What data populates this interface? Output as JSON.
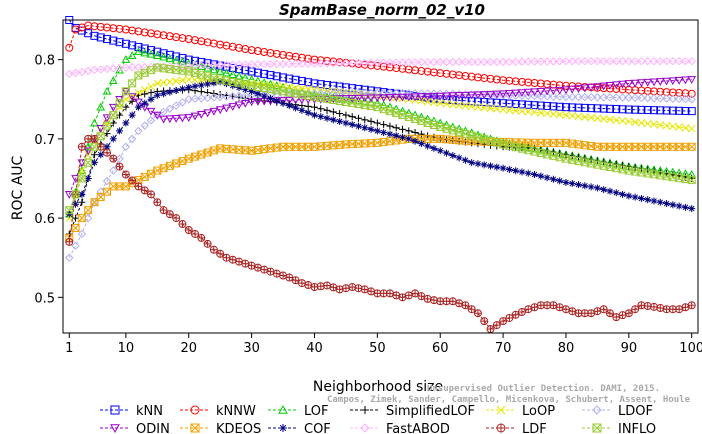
{
  "chart_data": {
    "type": "line",
    "title": "SpamBase_norm_02_v10",
    "xlabel": "Neighborhood size",
    "ylabel": "ROC AUC",
    "xlim": [
      0,
      101
    ],
    "ylim": [
      0.455,
      0.85
    ],
    "x_ticks": [
      1,
      10,
      20,
      30,
      40,
      50,
      60,
      70,
      80,
      90,
      100
    ],
    "y_ticks": [
      0.5,
      0.6,
      0.7,
      0.8
    ],
    "grid": false,
    "legend_position": "bottom",
    "series": [
      {
        "name": "kNN",
        "color": "#0000ff",
        "marker": "square",
        "points": [
          [
            1,
            0.85
          ],
          [
            2,
            0.84
          ],
          [
            5,
            0.83
          ],
          [
            10,
            0.82
          ],
          [
            15,
            0.81
          ],
          [
            20,
            0.8
          ],
          [
            30,
            0.785
          ],
          [
            40,
            0.77
          ],
          [
            50,
            0.76
          ],
          [
            60,
            0.75
          ],
          [
            70,
            0.745
          ],
          [
            80,
            0.74
          ],
          [
            90,
            0.737
          ],
          [
            100,
            0.735
          ]
        ]
      },
      {
        "name": "kNNW",
        "color": "#ff0000",
        "marker": "circle",
        "points": [
          [
            1,
            0.815
          ],
          [
            2,
            0.838
          ],
          [
            4,
            0.843
          ],
          [
            10,
            0.838
          ],
          [
            20,
            0.826
          ],
          [
            30,
            0.812
          ],
          [
            40,
            0.8
          ],
          [
            50,
            0.792
          ],
          [
            60,
            0.783
          ],
          [
            70,
            0.774
          ],
          [
            80,
            0.767
          ],
          [
            90,
            0.762
          ],
          [
            100,
            0.757
          ]
        ]
      },
      {
        "name": "LOF",
        "color": "#00cc00",
        "marker": "triangle",
        "points": [
          [
            1,
            0.605
          ],
          [
            3,
            0.66
          ],
          [
            5,
            0.72
          ],
          [
            7,
            0.76
          ],
          [
            10,
            0.8
          ],
          [
            12,
            0.81
          ],
          [
            15,
            0.805
          ],
          [
            20,
            0.795
          ],
          [
            25,
            0.785
          ],
          [
            30,
            0.775
          ],
          [
            35,
            0.765
          ],
          [
            40,
            0.755
          ],
          [
            50,
            0.745
          ],
          [
            60,
            0.72
          ],
          [
            70,
            0.695
          ],
          [
            80,
            0.68
          ],
          [
            90,
            0.665
          ],
          [
            100,
            0.655
          ]
        ]
      },
      {
        "name": "SimplifiedLOF",
        "color": "#000000",
        "marker": "plus",
        "points": [
          [
            1,
            0.58
          ],
          [
            3,
            0.62
          ],
          [
            5,
            0.68
          ],
          [
            8,
            0.72
          ],
          [
            10,
            0.74
          ],
          [
            12,
            0.755
          ],
          [
            15,
            0.76
          ],
          [
            20,
            0.762
          ],
          [
            25,
            0.756
          ],
          [
            30,
            0.75
          ],
          [
            35,
            0.745
          ],
          [
            40,
            0.74
          ],
          [
            45,
            0.73
          ],
          [
            50,
            0.72
          ],
          [
            55,
            0.71
          ],
          [
            60,
            0.7
          ],
          [
            65,
            0.695
          ],
          [
            70,
            0.69
          ],
          [
            75,
            0.688
          ],
          [
            80,
            0.68
          ],
          [
            85,
            0.672
          ],
          [
            90,
            0.665
          ],
          [
            95,
            0.658
          ],
          [
            100,
            0.65
          ]
        ]
      },
      {
        "name": "LoOP",
        "color": "#e6e600",
        "marker": "cross",
        "points": [
          [
            1,
            0.6
          ],
          [
            3,
            0.66
          ],
          [
            5,
            0.7
          ],
          [
            10,
            0.75
          ],
          [
            15,
            0.77
          ],
          [
            20,
            0.775
          ],
          [
            30,
            0.77
          ],
          [
            40,
            0.762
          ],
          [
            50,
            0.755
          ],
          [
            60,
            0.745
          ],
          [
            70,
            0.737
          ],
          [
            80,
            0.73
          ],
          [
            90,
            0.722
          ],
          [
            100,
            0.713
          ]
        ]
      },
      {
        "name": "LDOF",
        "color": "#b0b0f0",
        "marker": "diamond",
        "points": [
          [
            1,
            0.55
          ],
          [
            3,
            0.58
          ],
          [
            5,
            0.62
          ],
          [
            8,
            0.66
          ],
          [
            10,
            0.69
          ],
          [
            12,
            0.71
          ],
          [
            15,
            0.73
          ],
          [
            20,
            0.75
          ],
          [
            25,
            0.753
          ],
          [
            30,
            0.755
          ],
          [
            40,
            0.757
          ],
          [
            50,
            0.758
          ],
          [
            60,
            0.757
          ],
          [
            70,
            0.755
          ],
          [
            80,
            0.753
          ],
          [
            90,
            0.752
          ],
          [
            100,
            0.75
          ]
        ]
      },
      {
        "name": "ODIN",
        "color": "#9900cc",
        "marker": "triangle-down",
        "points": [
          [
            1,
            0.63
          ],
          [
            3,
            0.67
          ],
          [
            5,
            0.7
          ],
          [
            8,
            0.74
          ],
          [
            10,
            0.76
          ],
          [
            13,
            0.74
          ],
          [
            16,
            0.725
          ],
          [
            20,
            0.727
          ],
          [
            25,
            0.737
          ],
          [
            30,
            0.747
          ],
          [
            40,
            0.75
          ],
          [
            50,
            0.752
          ],
          [
            60,
            0.754
          ],
          [
            70,
            0.757
          ],
          [
            80,
            0.762
          ],
          [
            90,
            0.77
          ],
          [
            100,
            0.775
          ]
        ]
      },
      {
        "name": "KDEOS",
        "color": "#f0a000",
        "marker": "square-x",
        "points": [
          [
            1,
            0.575
          ],
          [
            3,
            0.6
          ],
          [
            5,
            0.62
          ],
          [
            8,
            0.64
          ],
          [
            10,
            0.64
          ],
          [
            15,
            0.66
          ],
          [
            20,
            0.675
          ],
          [
            25,
            0.688
          ],
          [
            30,
            0.685
          ],
          [
            35,
            0.69
          ],
          [
            40,
            0.69
          ],
          [
            45,
            0.693
          ],
          [
            50,
            0.695
          ],
          [
            55,
            0.7
          ],
          [
            60,
            0.7
          ],
          [
            65,
            0.697
          ],
          [
            70,
            0.696
          ],
          [
            75,
            0.695
          ],
          [
            80,
            0.695
          ],
          [
            85,
            0.69
          ],
          [
            90,
            0.69
          ],
          [
            95,
            0.69
          ],
          [
            100,
            0.69
          ]
        ]
      },
      {
        "name": "COF",
        "color": "#000080",
        "marker": "star",
        "points": [
          [
            1,
            0.605
          ],
          [
            3,
            0.63
          ],
          [
            5,
            0.67
          ],
          [
            8,
            0.7
          ],
          [
            10,
            0.72
          ],
          [
            12,
            0.74
          ],
          [
            15,
            0.755
          ],
          [
            20,
            0.765
          ],
          [
            25,
            0.772
          ],
          [
            30,
            0.76
          ],
          [
            35,
            0.745
          ],
          [
            40,
            0.73
          ],
          [
            45,
            0.72
          ],
          [
            50,
            0.71
          ],
          [
            55,
            0.7
          ],
          [
            60,
            0.685
          ],
          [
            65,
            0.67
          ],
          [
            70,
            0.663
          ],
          [
            75,
            0.655
          ],
          [
            80,
            0.645
          ],
          [
            85,
            0.638
          ],
          [
            90,
            0.628
          ],
          [
            95,
            0.62
          ],
          [
            100,
            0.612
          ]
        ]
      },
      {
        "name": "FastABOD",
        "color": "#ffb0ff",
        "marker": "diamond",
        "points": [
          [
            1,
            0.782
          ],
          [
            5,
            0.787
          ],
          [
            10,
            0.79
          ],
          [
            20,
            0.792
          ],
          [
            30,
            0.794
          ],
          [
            40,
            0.795
          ],
          [
            50,
            0.796
          ],
          [
            60,
            0.797
          ],
          [
            70,
            0.797
          ],
          [
            80,
            0.798
          ],
          [
            90,
            0.798
          ],
          [
            100,
            0.798
          ]
        ]
      },
      {
        "name": "LDF",
        "color": "#aa2222",
        "marker": "circle-plus",
        "points": [
          [
            1,
            0.57
          ],
          [
            2,
            0.63
          ],
          [
            3,
            0.69
          ],
          [
            4,
            0.7
          ],
          [
            5,
            0.7
          ],
          [
            6,
            0.69
          ],
          [
            8,
            0.675
          ],
          [
            10,
            0.655
          ],
          [
            12,
            0.64
          ],
          [
            14,
            0.63
          ],
          [
            16,
            0.61
          ],
          [
            18,
            0.6
          ],
          [
            20,
            0.585
          ],
          [
            22,
            0.575
          ],
          [
            24,
            0.56
          ],
          [
            26,
            0.55
          ],
          [
            28,
            0.545
          ],
          [
            30,
            0.54
          ],
          [
            32,
            0.535
          ],
          [
            34,
            0.53
          ],
          [
            36,
            0.525
          ],
          [
            38,
            0.518
          ],
          [
            40,
            0.513
          ],
          [
            42,
            0.515
          ],
          [
            44,
            0.51
          ],
          [
            46,
            0.513
          ],
          [
            48,
            0.51
          ],
          [
            50,
            0.505
          ],
          [
            52,
            0.505
          ],
          [
            54,
            0.5
          ],
          [
            56,
            0.505
          ],
          [
            58,
            0.498
          ],
          [
            60,
            0.495
          ],
          [
            62,
            0.495
          ],
          [
            64,
            0.49
          ],
          [
            66,
            0.48
          ],
          [
            68,
            0.46
          ],
          [
            70,
            0.47
          ],
          [
            72,
            0.478
          ],
          [
            74,
            0.485
          ],
          [
            76,
            0.49
          ],
          [
            78,
            0.49
          ],
          [
            80,
            0.485
          ],
          [
            82,
            0.48
          ],
          [
            84,
            0.48
          ],
          [
            86,
            0.485
          ],
          [
            88,
            0.475
          ],
          [
            90,
            0.48
          ],
          [
            92,
            0.49
          ],
          [
            94,
            0.488
          ],
          [
            96,
            0.485
          ],
          [
            98,
            0.485
          ],
          [
            100,
            0.49
          ]
        ]
      },
      {
        "name": "INFLO",
        "color": "#99cc33",
        "marker": "square-x",
        "points": [
          [
            1,
            0.61
          ],
          [
            3,
            0.65
          ],
          [
            5,
            0.69
          ],
          [
            8,
            0.73
          ],
          [
            10,
            0.76
          ],
          [
            12,
            0.78
          ],
          [
            15,
            0.79
          ],
          [
            20,
            0.785
          ],
          [
            25,
            0.775
          ],
          [
            30,
            0.767
          ],
          [
            35,
            0.76
          ],
          [
            40,
            0.753
          ],
          [
            50,
            0.74
          ],
          [
            60,
            0.715
          ],
          [
            70,
            0.693
          ],
          [
            80,
            0.675
          ],
          [
            90,
            0.66
          ],
          [
            100,
            0.648
          ]
        ]
      }
    ],
    "legend_rows": [
      [
        "kNN",
        "kNNW",
        "LOF",
        "SimplifiedLOF",
        "LoOP",
        "LDOF"
      ],
      [
        "ODIN",
        "KDEOS",
        "COF",
        "FastABOD",
        "LDF",
        "INFLO"
      ]
    ],
    "watermark": [
      "Unsupervised Outlier Detection. DAMI, 2015.",
      "Campos, Zimek, Sander, Campello, Micenkova, Schubert, Assent, Houle"
    ]
  }
}
